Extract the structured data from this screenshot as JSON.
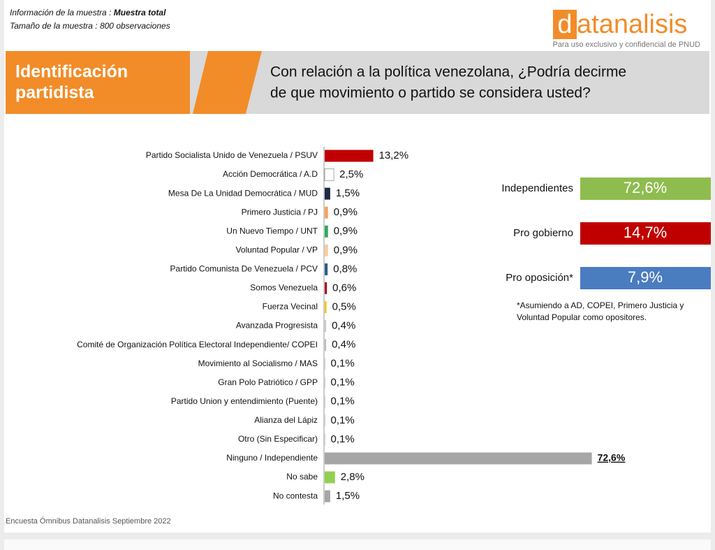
{
  "header": {
    "sample_label": "Información de la muestra :",
    "sample_value": "Muestra total",
    "size_line": "Tamaño de la muestra : 800 observaciones",
    "logo_first": "d",
    "logo_rest": "atanalisis",
    "confidential": "Para uso exclusivo y confidencial de  PNUD"
  },
  "banner": {
    "title_lines": [
      "Identificación",
      "partidista"
    ],
    "question_lines": [
      "Con relación a la política venezolana, ¿Podría decirme",
      "de que movimiento o partido se considera usted?"
    ]
  },
  "chart_data": {
    "type": "bar",
    "orientation": "horizontal",
    "categories": [
      "Partido Socialista Unido de Venezuela / PSUV",
      "Acción Democrática / A.D",
      "Mesa De La Unidad Democrática / MUD",
      "Primero Justicia / PJ",
      "Un Nuevo Tiempo / UNT",
      "Voluntad Popular / VP",
      "Partido Comunista De Venezuela / PCV",
      "Somos Venezuela",
      "Fuerza Vecinal",
      "Avanzada Progresista",
      "Comité de Organización Política Electoral Independiente/ COPEI",
      "Movimiento al Socialismo / MAS",
      "Gran Polo Patriótico / GPP",
      "Partido Union y entendimiento (Puente)",
      "Alianza del Lápiz",
      "Otro (Sin Especificar)",
      "Ninguno / Independiente",
      "No sabe",
      "No contesta"
    ],
    "values": [
      13.2,
      2.5,
      1.5,
      0.9,
      0.9,
      0.9,
      0.8,
      0.6,
      0.5,
      0.4,
      0.4,
      0.1,
      0.1,
      0.1,
      0.1,
      0.1,
      72.6,
      2.8,
      1.5
    ],
    "value_labels": [
      "13,2%",
      "2,5%",
      "1,5%",
      "0,9%",
      "0,9%",
      "0,9%",
      "0,8%",
      "0,6%",
      "0,5%",
      "0,4%",
      "0,4%",
      "0,1%",
      "0,1%",
      "0,1%",
      "0,1%",
      "0,1%",
      "72,6%",
      "2,8%",
      "1,5%"
    ],
    "colors": [
      "#c00000",
      "#ffffff",
      "#1f2a44",
      "#f4a460",
      "#2eaa5c",
      "#f8cba0",
      "#2e5c8a",
      "#b00020",
      "#f5c518",
      "#c8c8c8",
      "#bdbdbd",
      "#a6a6a6",
      "#a6a6a6",
      "#a6a6a6",
      "#a6a6a6",
      "#a6a6a6",
      "#a6a6a6",
      "#92d050",
      "#a6a6a6"
    ]
  },
  "summary": [
    {
      "name": "Independientes",
      "label": "72,6%",
      "color": "#8fbc4f"
    },
    {
      "name": "Pro gobierno",
      "label": "14,7%",
      "color": "#c00000"
    },
    {
      "name": "Pro oposición*",
      "label": "7,9%",
      "color": "#4a7cc0"
    }
  ],
  "footnote_lines": [
    "*Asumiendo a AD, COPEI, Primero Justicia y",
    "Voluntad Popular como opositores."
  ],
  "source": "Encuesta Ómnibus Datanalisis  Septiembre 2022"
}
